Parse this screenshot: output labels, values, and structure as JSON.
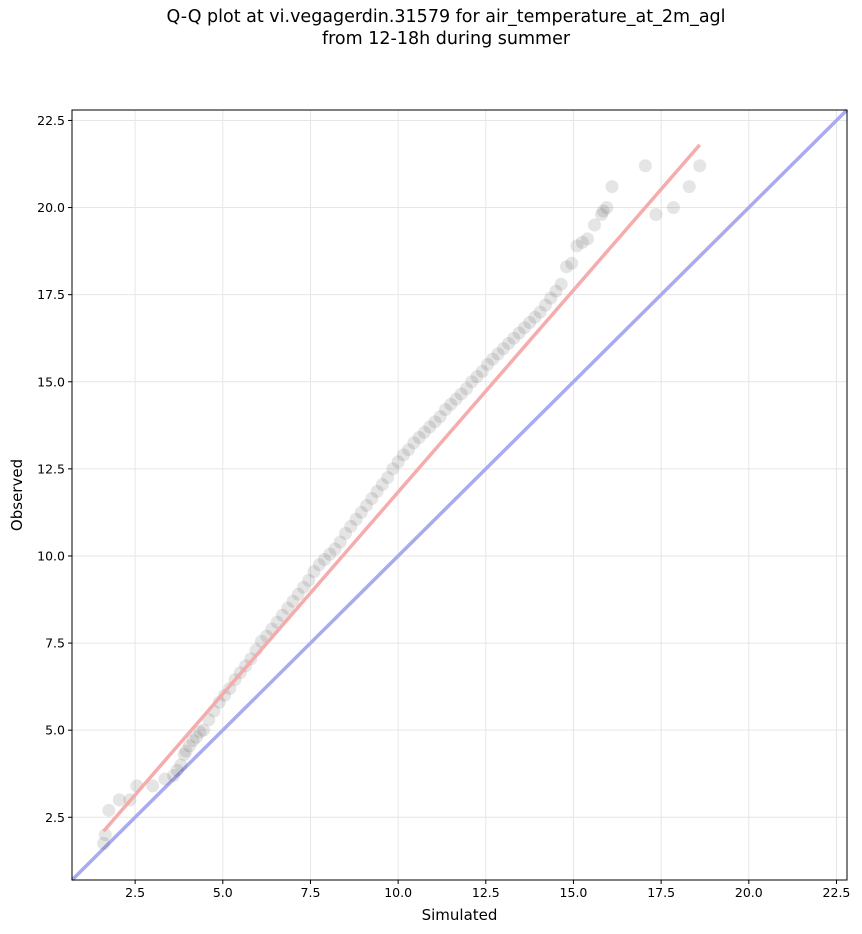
{
  "chart_data": {
    "type": "scatter",
    "title_line1": "Q-Q plot at vi.vegagerdin.31579 for air_temperature_at_2m_agl",
    "title_line2": "from 12-18h during summer",
    "xlabel": "Simulated",
    "ylabel": "Observed",
    "xlim": [
      0.7,
      22.8
    ],
    "ylim": [
      0.7,
      22.8
    ],
    "xticks": [
      "2.5",
      "5.0",
      "7.5",
      "10.0",
      "12.5",
      "15.0",
      "17.5",
      "20.0",
      "22.5"
    ],
    "yticks": [
      "2.5",
      "5.0",
      "7.5",
      "10.0",
      "12.5",
      "15.0",
      "17.5",
      "20.0",
      "22.5"
    ],
    "grid": true,
    "reference_line": {
      "name": "1:1",
      "color": "#aaaaf0",
      "from": [
        0.7,
        0.7
      ],
      "to": [
        22.8,
        22.8
      ]
    },
    "fit_line": {
      "color": "#f4a8a8",
      "from": [
        1.6,
        2.1
      ],
      "to": [
        18.6,
        21.8
      ]
    },
    "quantiles": {
      "x": [
        1.6,
        1.65,
        1.75,
        2.05,
        2.35,
        2.55,
        3.0,
        3.35,
        3.6,
        3.7,
        3.8,
        3.9,
        3.95,
        4.05,
        4.15,
        4.25,
        4.35,
        4.45,
        4.6,
        4.75,
        4.9,
        5.05,
        5.2,
        5.35,
        5.5,
        5.65,
        5.8,
        5.95,
        6.1,
        6.25,
        6.4,
        6.55,
        6.7,
        6.85,
        7.0,
        7.15,
        7.3,
        7.45,
        7.6,
        7.75,
        7.9,
        8.05,
        8.2,
        8.35,
        8.5,
        8.65,
        8.8,
        8.95,
        9.1,
        9.25,
        9.4,
        9.55,
        9.7,
        9.85,
        10.0,
        10.15,
        10.3,
        10.45,
        10.6,
        10.75,
        10.9,
        11.05,
        11.2,
        11.35,
        11.5,
        11.65,
        11.8,
        11.95,
        12.1,
        12.25,
        12.4,
        12.55,
        12.7,
        12.85,
        13.0,
        13.15,
        13.3,
        13.45,
        13.6,
        13.75,
        13.9,
        14.05,
        14.2,
        14.35,
        14.5,
        14.65,
        14.8,
        14.95,
        15.1,
        15.25,
        15.4,
        15.6,
        15.8,
        15.85,
        15.95,
        16.1,
        17.05,
        17.35,
        17.85,
        18.3,
        18.6
      ],
      "y": [
        1.75,
        2.0,
        2.7,
        3.0,
        3.0,
        3.4,
        3.4,
        3.6,
        3.7,
        3.85,
        4.0,
        4.3,
        4.4,
        4.55,
        4.7,
        4.8,
        4.95,
        5.0,
        5.3,
        5.55,
        5.8,
        6.0,
        6.2,
        6.45,
        6.65,
        6.85,
        7.05,
        7.3,
        7.55,
        7.7,
        7.9,
        8.1,
        8.3,
        8.5,
        8.7,
        8.9,
        9.1,
        9.3,
        9.55,
        9.75,
        9.9,
        10.05,
        10.2,
        10.4,
        10.65,
        10.85,
        11.05,
        11.25,
        11.45,
        11.65,
        11.85,
        12.05,
        12.25,
        12.5,
        12.7,
        12.9,
        13.05,
        13.25,
        13.4,
        13.55,
        13.7,
        13.85,
        14.0,
        14.2,
        14.35,
        14.5,
        14.65,
        14.8,
        15.0,
        15.15,
        15.3,
        15.5,
        15.65,
        15.8,
        15.95,
        16.1,
        16.25,
        16.4,
        16.55,
        16.7,
        16.85,
        17.0,
        17.2,
        17.4,
        17.6,
        17.8,
        18.3,
        18.4,
        18.9,
        19.0,
        19.1,
        19.5,
        19.8,
        19.9,
        20.0,
        20.6,
        21.2,
        19.8,
        20.0,
        20.6,
        21.2
      ],
      "marker_color": "#333333"
    }
  }
}
